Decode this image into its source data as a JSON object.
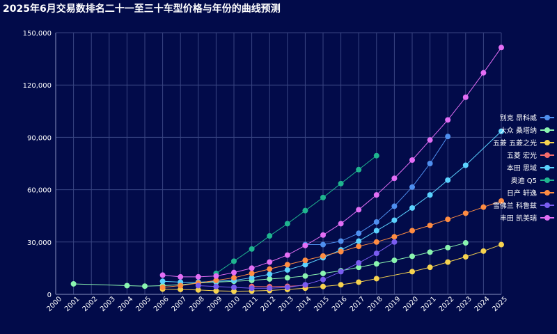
{
  "title": "2025年6月交易数排名二十一至三十车型价格与年份的曲线预测",
  "chart_data": {
    "type": "line",
    "title": "2025年6月交易数排名二十一至三十车型价格与年份的曲线预测",
    "xlabel": "",
    "ylabel": "",
    "x_ticks": [
      "2000",
      "2001",
      "2002",
      "2003",
      "2004",
      "2005",
      "2006",
      "2007",
      "2008",
      "2009",
      "2010",
      "2011",
      "2012",
      "2013",
      "2014",
      "2015",
      "2016",
      "2017",
      "2018",
      "2019",
      "2020",
      "2021",
      "2022",
      "2023",
      "2024",
      "2025"
    ],
    "y_ticks": [
      "0",
      "30,000",
      "60,000",
      "90,000",
      "120,000",
      "150,000"
    ],
    "xlim": [
      2000,
      2025
    ],
    "ylim": [
      0,
      150000
    ],
    "grid": true,
    "legend_position": "right",
    "series": [
      {
        "name": "别克 昂科威",
        "color": "#4f8fef",
        "x": [
          2014,
          2015,
          2016,
          2017,
          2018,
          2019,
          2020,
          2021,
          2022
        ],
        "y": [
          28500,
          28500,
          30500,
          35000,
          41500,
          50500,
          61500,
          75000,
          90500
        ]
      },
      {
        "name": "大众 桑塔纳",
        "color": "#8af5b0",
        "x": [
          2001,
          2004,
          2005,
          2006,
          2007,
          2008,
          2009,
          2010,
          2011,
          2012,
          2013,
          2014,
          2015,
          2016,
          2017,
          2018,
          2019,
          2020,
          2021,
          2022,
          2023
        ],
        "y": [
          6000,
          5000,
          4700,
          5000,
          5500,
          6500,
          7000,
          7500,
          8000,
          8800,
          9500,
          10500,
          12000,
          13500,
          15500,
          17500,
          19500,
          21800,
          24200,
          26800,
          29500
        ]
      },
      {
        "name": "五菱 五菱之光",
        "color": "#f7d34f",
        "x": [
          2006,
          2007,
          2008,
          2009,
          2010,
          2011,
          2012,
          2013,
          2014,
          2015,
          2016,
          2017,
          2018,
          2020,
          2021,
          2022,
          2023,
          2024,
          2025
        ],
        "y": [
          3000,
          2800,
          2500,
          2000,
          1800,
          1900,
          2200,
          2800,
          3500,
          4500,
          5500,
          7000,
          9000,
          13000,
          15500,
          18500,
          21500,
          24800,
          28500
        ]
      },
      {
        "name": "五菱 宏光",
        "color": "#f56b6b",
        "x": [
          2011,
          2012,
          2013,
          2014
        ],
        "y": [
          4500,
          4400,
          4600,
          5200
        ]
      },
      {
        "name": "本田 思域",
        "color": "#5bd2ff",
        "x": [
          2006,
          2007,
          2008,
          2009,
          2010,
          2011,
          2012,
          2013,
          2014,
          2015,
          2016,
          2017,
          2018,
          2019,
          2020,
          2021,
          2022,
          2023,
          2025
        ],
        "y": [
          7500,
          7000,
          7000,
          7500,
          8000,
          9500,
          11500,
          14000,
          17000,
          21000,
          25500,
          30500,
          36500,
          42500,
          49500,
          57000,
          65500,
          74000,
          93500
        ]
      },
      {
        "name": "奥迪 Q5",
        "color": "#1fb58f",
        "x": [
          2009,
          2010,
          2011,
          2012,
          2013,
          2014,
          2015,
          2016,
          2017,
          2018
        ],
        "y": [
          12000,
          19000,
          26000,
          33500,
          40500,
          48000,
          55500,
          63500,
          71500,
          79500
        ]
      },
      {
        "name": "日产 轩逸",
        "color": "#ff8c42",
        "x": [
          2006,
          2007,
          2008,
          2009,
          2010,
          2011,
          2012,
          2013,
          2014,
          2015,
          2016,
          2017,
          2018,
          2019,
          2020,
          2021,
          2022,
          2023,
          2024,
          2025
        ],
        "y": [
          4000,
          5000,
          6500,
          8000,
          9500,
          12000,
          14500,
          17000,
          19500,
          22000,
          24500,
          27500,
          30000,
          33000,
          36500,
          39500,
          43000,
          46500,
          50000,
          53500
        ]
      },
      {
        "name": "雪佛兰 科鲁兹",
        "color": "#7a5cf0",
        "x": [
          2008,
          2009,
          2010,
          2011,
          2012,
          2013,
          2014,
          2015,
          2016,
          2017,
          2018,
          2019
        ],
        "y": [
          5000,
          4500,
          4000,
          3500,
          3500,
          4000,
          5500,
          8500,
          13000,
          18000,
          23500,
          30000
        ]
      },
      {
        "name": "丰田 凯美瑞",
        "color": "#e36ef5",
        "x": [
          2006,
          2007,
          2008,
          2009,
          2010,
          2011,
          2012,
          2013,
          2014,
          2015,
          2016,
          2017,
          2018,
          2019,
          2020,
          2021,
          2022,
          2023,
          2024,
          2025
        ],
        "y": [
          11000,
          10000,
          10000,
          10500,
          12500,
          15000,
          18500,
          22500,
          28000,
          34000,
          40500,
          48500,
          57000,
          66500,
          77000,
          88500,
          100000,
          113000,
          127000,
          141500
        ]
      }
    ]
  }
}
